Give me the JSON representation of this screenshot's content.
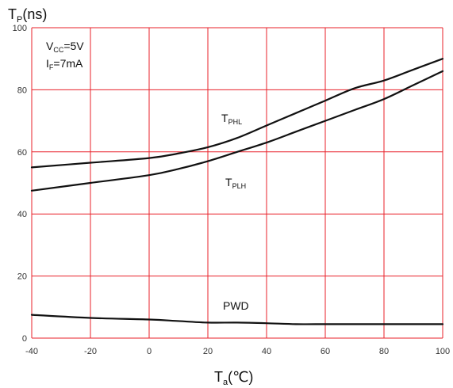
{
  "chart_data": {
    "type": "line",
    "ylabel": {
      "main": "T",
      "sub": "P",
      "unit": "(ns)"
    },
    "xlabel": {
      "main": "T",
      "sub": "a",
      "unit": "(℃)"
    },
    "conditions": [
      {
        "main": "V",
        "sub": "CC",
        "rest": "=5V"
      },
      {
        "main": "I",
        "sub": "F",
        "rest": "=7mA"
      }
    ],
    "xlim": [
      -40,
      100
    ],
    "ylim": [
      0,
      100
    ],
    "xticks": [
      "-40",
      "-20",
      "0",
      "20",
      "40",
      "60",
      "80",
      "100"
    ],
    "yticks": [
      "0",
      "20",
      "40",
      "60",
      "80",
      "100"
    ],
    "grid": true,
    "grid_color": "#e8202a",
    "line_color": "#111111",
    "series": [
      {
        "name": "T",
        "name_sub": "PHL",
        "x": [
          -40,
          -20,
          0,
          10,
          20,
          30,
          40,
          50,
          60,
          70,
          80,
          90,
          100
        ],
        "y": [
          55,
          56.5,
          58,
          59.5,
          61.5,
          64.5,
          68.5,
          72.5,
          76.5,
          80.5,
          83,
          86.5,
          90
        ]
      },
      {
        "name": "T",
        "name_sub": "PLH",
        "x": [
          -40,
          -20,
          0,
          10,
          20,
          30,
          40,
          50,
          60,
          70,
          80,
          90,
          100
        ],
        "y": [
          47.5,
          50,
          52.5,
          54.5,
          57,
          60,
          63,
          66.5,
          70,
          73.5,
          77,
          81.5,
          86
        ]
      },
      {
        "name": "PWD",
        "x": [
          -40,
          -20,
          0,
          10,
          20,
          30,
          40,
          50,
          60,
          70,
          80,
          90,
          100
        ],
        "y": [
          7.5,
          6.5,
          6,
          5.5,
          5,
          5,
          4.8,
          4.5,
          4.5,
          4.5,
          4.5,
          4.5,
          4.5
        ]
      }
    ]
  }
}
